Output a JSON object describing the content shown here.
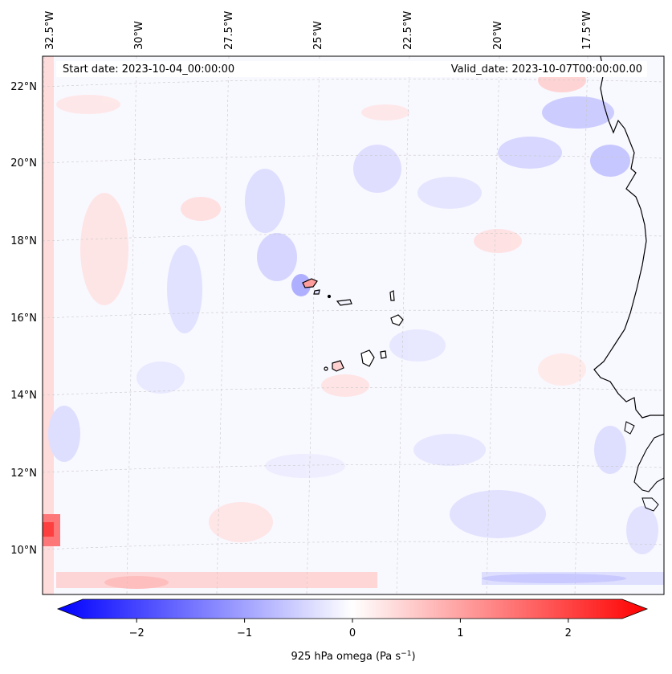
{
  "map": {
    "start_date_label": "Start date: 2023-10-04_00:00:00",
    "valid_date_label": "Valid_date: 2023-10-07T00:00:00.00",
    "longitude_labels": [
      "32.5°W",
      "30°W",
      "27.5°W",
      "25°W",
      "22.5°W",
      "20°W",
      "17.5°W"
    ],
    "latitude_labels": [
      "22°N",
      "20°N",
      "18°N",
      "16°N",
      "14°N",
      "12°N",
      "10°N"
    ],
    "field": "925 hPa omega",
    "features": [
      "Cape Verde islands",
      "West African coastline"
    ]
  },
  "colorbar": {
    "label_text": "925 hPa omega (Pa s",
    "label_exponent": "−1",
    "label_close": ")",
    "ticks": [
      "−2",
      "−1",
      "0",
      "1",
      "2"
    ],
    "tick_values": [
      -2,
      -1,
      0,
      1,
      2
    ],
    "range": [
      -2.5,
      2.5
    ],
    "colors": {
      "negative": "#0000ff",
      "zero": "#ffffff",
      "positive": "#ff0000"
    }
  }
}
